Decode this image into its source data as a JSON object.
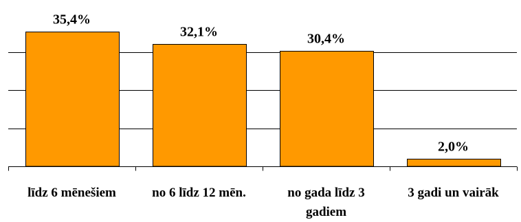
{
  "chart_data": {
    "type": "bar",
    "categories": [
      [
        "līdz 6 mēnešiem"
      ],
      [
        "no 6 līdz 12 mēn."
      ],
      [
        "no gada līdz 3",
        "gadiem"
      ],
      [
        "3 gadi un vairāk"
      ]
    ],
    "values": [
      35.4,
      32.1,
      30.4,
      2.0
    ],
    "value_labels": [
      "35,4%",
      "32,1%",
      "30,4%",
      "2,0%"
    ],
    "ylim": [
      0,
      40
    ],
    "y_gridlines": [
      10,
      20,
      30
    ],
    "grid": true,
    "bar_color": "#FF9900",
    "title": "",
    "xlabel": "",
    "ylabel": ""
  }
}
